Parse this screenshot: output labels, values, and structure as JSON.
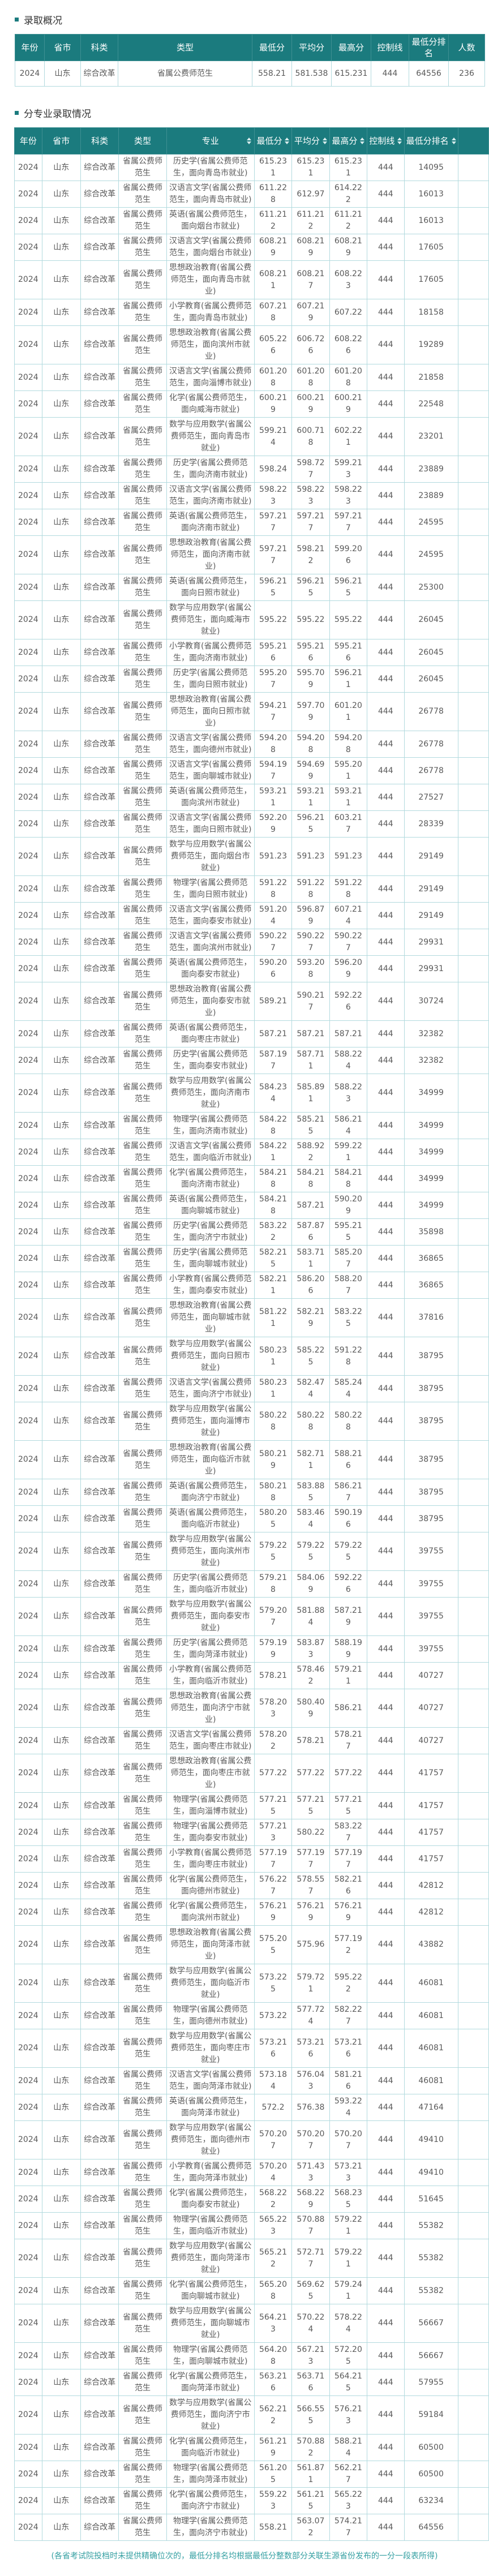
{
  "page": {
    "overview_title": "录取概况",
    "major_title": "分专业录取情况",
    "footnote": "(各省考试院投档时未提供精确位次的，最低分排名均根据最低分整数部分关联生源省份发布的一分一段表所得)"
  },
  "colors": {
    "header_bg": "#1b7b7e",
    "cell_border": "#b2dade",
    "accent_bullet": "#1b7b7e",
    "footnote_text": "#35a0a2"
  },
  "overview_table": {
    "headers": [
      "年份",
      "省市",
      "科类",
      "类型",
      "最低分",
      "平均分",
      "最高分",
      "控制线",
      "最低分排名",
      "人数"
    ],
    "row": [
      "2024",
      "山东",
      "综合改革",
      "省属公费师范生",
      "558.21",
      "581.538",
      "615.231",
      "444",
      "64556",
      "236"
    ]
  },
  "major_table": {
    "headers": [
      {
        "label": "年份",
        "sortable": false
      },
      {
        "label": "省市",
        "sortable": false
      },
      {
        "label": "科类",
        "sortable": false
      },
      {
        "label": "类型",
        "sortable": false
      },
      {
        "label": "专业",
        "sortable": true
      },
      {
        "label": "最低分",
        "sortable": true
      },
      {
        "label": "平均分",
        "sortable": true
      },
      {
        "label": "最高分",
        "sortable": true
      },
      {
        "label": "控制线",
        "sortable": true
      },
      {
        "label": "最低分排名",
        "sortable": true
      },
      {
        "label": "",
        "sortable": false
      }
    ],
    "common": {
      "year": "2024",
      "province": "山东",
      "subject_category": "综合改革",
      "type": "省属公费师范生",
      "control_line": "444"
    },
    "rows": [
      [
        "历史学(省属公费师范生，面向青岛市就业)",
        "615.231",
        "615.231",
        "615.231",
        "14095"
      ],
      [
        "汉语言文学(省属公费师范生，面向青岛市就业)",
        "611.228",
        "612.97",
        "614.222",
        "16013"
      ],
      [
        "英语(省属公费师范生，面向烟台市就业)",
        "611.212",
        "611.212",
        "611.212",
        "16013"
      ],
      [
        "汉语言文学(省属公费师范生，面向烟台市就业)",
        "608.219",
        "608.219",
        "608.219",
        "17605"
      ],
      [
        "思想政治教育(省属公费师范生，面向青岛市就业)",
        "608.211",
        "608.217",
        "608.223",
        "17605"
      ],
      [
        "小学教育(省属公费师范生，面向青岛市就业)",
        "607.218",
        "607.219",
        "607.22",
        "18158"
      ],
      [
        "思想政治教育(省属公费师范生，面向滨州市就业)",
        "605.226",
        "606.726",
        "608.226",
        "19289"
      ],
      [
        "汉语言文学(省属公费师范生，面向淄博市就业)",
        "601.208",
        "601.208",
        "601.208",
        "21858"
      ],
      [
        "化学(省属公费师范生，面向威海市就业)",
        "600.219",
        "600.219",
        "600.219",
        "22548"
      ],
      [
        "数学与应用数学(省属公费师范生，面向青岛市就业)",
        "599.214",
        "600.718",
        "602.221",
        "23201"
      ],
      [
        "历史学(省属公费师范生，面向济南市就业)",
        "598.24",
        "598.727",
        "599.213",
        "23889"
      ],
      [
        "汉语言文学(省属公费师范生，面向济南市就业)",
        "598.223",
        "598.223",
        "598.223",
        "23889"
      ],
      [
        "英语(省属公费师范生，面向济南市就业)",
        "597.217",
        "597.217",
        "597.217",
        "24595"
      ],
      [
        "思想政治教育(省属公费师范生，面向济南市就业)",
        "597.217",
        "598.212",
        "599.206",
        "24595"
      ],
      [
        "英语(省属公费师范生，面向日照市就业)",
        "596.215",
        "596.215",
        "596.215",
        "25300"
      ],
      [
        "数学与应用数学(省属公费师范生，面向威海市就业)",
        "595.22",
        "595.22",
        "595.22",
        "26045"
      ],
      [
        "小学教育(省属公费师范生，面向济南市就业)",
        "595.216",
        "595.216",
        "595.216",
        "26045"
      ],
      [
        "历史学(省属公费师范生，面向日照市就业)",
        "595.207",
        "595.709",
        "596.211",
        "26045"
      ],
      [
        "思想政治教育(省属公费师范生，面向日照市就业)",
        "594.217",
        "597.709",
        "601.201",
        "26778"
      ],
      [
        "汉语言文学(省属公费师范生，面向德州市就业)",
        "594.208",
        "594.208",
        "594.208",
        "26778"
      ],
      [
        "汉语言文学(省属公费师范生，面向聊城市就业)",
        "594.197",
        "594.699",
        "595.201",
        "26778"
      ],
      [
        "英语(省属公费师范生，面向滨州市就业)",
        "593.211",
        "593.211",
        "593.211",
        "27527"
      ],
      [
        "汉语言文学(省属公费师范生，面向日照市就业)",
        "592.209",
        "596.215",
        "603.217",
        "28339"
      ],
      [
        "数学与应用数学(省属公费师范生，面向烟台市就业)",
        "591.23",
        "591.23",
        "591.23",
        "29149"
      ],
      [
        "物理学(省属公费师范生，面向日照市就业)",
        "591.228",
        "591.228",
        "591.228",
        "29149"
      ],
      [
        "汉语言文学(省属公费师范生，面向泰安市就业)",
        "591.204",
        "596.879",
        "607.214",
        "29149"
      ],
      [
        "汉语言文学(省属公费师范生，面向滨州市就业)",
        "590.227",
        "590.227",
        "590.227",
        "29931"
      ],
      [
        "英语(省属公费师范生，面向泰安市就业)",
        "590.206",
        "593.208",
        "596.209",
        "29931"
      ],
      [
        "思想政治教育(省属公费师范生，面向泰安市就业)",
        "589.21",
        "590.217",
        "592.226",
        "30724"
      ],
      [
        "英语(省属公费师范生，面向枣庄市就业)",
        "587.21",
        "587.21",
        "587.21",
        "32382"
      ],
      [
        "历史学(省属公费师范生，面向泰安市就业)",
        "587.197",
        "587.711",
        "588.224",
        "32382"
      ],
      [
        "数学与应用数学(省属公费师范生，面向济南市就业)",
        "584.234",
        "585.891",
        "588.223",
        "34999"
      ],
      [
        "物理学(省属公费师范生，面向济南市就业)",
        "584.228",
        "585.215",
        "586.214",
        "34999"
      ],
      [
        "汉语言文学(省属公费师范生，面向临沂市就业)",
        "584.221",
        "588.922",
        "599.221",
        "34999"
      ],
      [
        "化学(省属公费师范生，面向济南市就业)",
        "584.218",
        "584.218",
        "584.218",
        "34999"
      ],
      [
        "英语(省属公费师范生，面向聊城市就业)",
        "584.218",
        "587.21",
        "590.209",
        "34999"
      ],
      [
        "历史学(省属公费师范生，面向济宁市就业)",
        "583.222",
        "587.876",
        "595.215",
        "35898"
      ],
      [
        "历史学(省属公费师范生，面向聊城市就业)",
        "582.215",
        "583.711",
        "585.207",
        "36865"
      ],
      [
        "小学教育(省属公费师范生，面向泰安市就业)",
        "582.211",
        "586.206",
        "588.207",
        "36865"
      ],
      [
        "思想政治教育(省属公费师范生，面向聊城市就业)",
        "581.221",
        "582.219",
        "583.225",
        "37816"
      ],
      [
        "数学与应用数学(省属公费师范生，面向日照市就业)",
        "580.231",
        "585.225",
        "591.228",
        "38795"
      ],
      [
        "汉语言文学(省属公费师范生，面向济宁市就业)",
        "580.231",
        "582.474",
        "585.244",
        "38795"
      ],
      [
        "数学与应用数学(省属公费师范生，面向淄博市就业)",
        "580.228",
        "580.228",
        "580.228",
        "38795"
      ],
      [
        "思想政治教育(省属公费师范生，面向临沂市就业)",
        "580.219",
        "582.711",
        "588.216",
        "38795"
      ],
      [
        "英语(省属公费师范生，面向济宁市就业)",
        "580.218",
        "583.885",
        "586.217",
        "38795"
      ],
      [
        "英语(省属公费师范生，面向临沂市就业)",
        "580.205",
        "583.464",
        "590.196",
        "38795"
      ],
      [
        "数学与应用数学(省属公费师范生，面向滨州市就业)",
        "579.225",
        "579.225",
        "579.225",
        "39755"
      ],
      [
        "历史学(省属公费师范生，面向临沂市就业)",
        "579.218",
        "584.069",
        "592.226",
        "39755"
      ],
      [
        "数学与应用数学(省属公费师范生，面向泰安市就业)",
        "579.207",
        "581.884",
        "587.219",
        "39755"
      ],
      [
        "历史学(省属公费师范生，面向菏泽市就业)",
        "579.199",
        "583.873",
        "588.199",
        "39755"
      ],
      [
        "小学教育(省属公费师范生，面向临沂市就业)",
        "578.21",
        "578.462",
        "579.211",
        "40727"
      ],
      [
        "思想政治教育(省属公费师范生，面向济宁市就业)",
        "578.203",
        "580.409",
        "586.21",
        "40727"
      ],
      [
        "汉语言文学(省属公费师范生，面向枣庄市就业)",
        "578.202",
        "578.21",
        "578.217",
        "40727"
      ],
      [
        "思想政治教育(省属公费师范生，面向枣庄市就业)",
        "577.22",
        "577.22",
        "577.22",
        "41757"
      ],
      [
        "物理学(省属公费师范生，面向淄博市就业)",
        "577.215",
        "577.215",
        "577.215",
        "41757"
      ],
      [
        "物理学(省属公费师范生，面向泰安市就业)",
        "577.213",
        "580.22",
        "583.227",
        "41757"
      ],
      [
        "小学教育(省属公费师范生，面向枣庄市就业)",
        "577.197",
        "577.197",
        "577.197",
        "41757"
      ],
      [
        "化学(省属公费师范生，面向德州市就业)",
        "576.227",
        "578.557",
        "582.216",
        "42812"
      ],
      [
        "化学(省属公费师范生，面向滨州市就业)",
        "576.219",
        "576.219",
        "576.219",
        "42812"
      ],
      [
        "思想政治教育(省属公费师范生，面向菏泽市就业)",
        "575.205",
        "575.96",
        "577.192",
        "43882"
      ],
      [
        "数学与应用数学(省属公费师范生，面向临沂市就业)",
        "573.225",
        "579.721",
        "595.222",
        "46081"
      ],
      [
        "物理学(省属公费师范生，面向德州市就业)",
        "573.22",
        "577.724",
        "582.227",
        "46081"
      ],
      [
        "数学与应用数学(省属公费师范生，面向枣庄市就业)",
        "573.216",
        "573.216",
        "573.216",
        "46081"
      ],
      [
        "汉语言文学(省属公费师范生，面向菏泽市就业)",
        "573.184",
        "576.043",
        "581.216",
        "46081"
      ],
      [
        "英语(省属公费师范生，面向菏泽市就业)",
        "572.2",
        "576.38",
        "593.224",
        "47164"
      ],
      [
        "数学与应用数学(省属公费师范生，面向德州市就业)",
        "570.207",
        "570.207",
        "570.207",
        "49410"
      ],
      [
        "小学教育(省属公费师范生，面向菏泽市就业)",
        "570.204",
        "571.433",
        "573.213",
        "49410"
      ],
      [
        "化学(省属公费师范生，面向泰安市就业)",
        "568.222",
        "568.229",
        "568.235",
        "51645"
      ],
      [
        "物理学(省属公费师范生，面向临沂市就业)",
        "565.223",
        "570.887",
        "579.221",
        "55382"
      ],
      [
        "数学与应用数学(省属公费师范生，面向菏泽市就业)",
        "565.212",
        "572.717",
        "579.221",
        "55382"
      ],
      [
        "化学(省属公费师范生，面向聊城市就业)",
        "565.208",
        "569.625",
        "579.241",
        "55382"
      ],
      [
        "数学与应用数学(省属公费师范生，面向聊城市就业)",
        "564.213",
        "570.224",
        "578.224",
        "56667"
      ],
      [
        "物理学(省属公费师范生，面向聊城市就业)",
        "564.208",
        "567.213",
        "572.205",
        "56667"
      ],
      [
        "化学(省属公费师范生，面向菏泽市就业)",
        "563.216",
        "563.716",
        "564.215",
        "57955"
      ],
      [
        "数学与应用数学(省属公费师范生，面向济宁市就业)",
        "562.212",
        "566.555",
        "576.213",
        "59184"
      ],
      [
        "化学(省属公费师范生，面向临沂市就业)",
        "561.219",
        "570.882",
        "588.214",
        "60500"
      ],
      [
        "物理学(省属公费师范生，面向菏泽市就业)",
        "561.205",
        "561.871",
        "562.217",
        "60500"
      ],
      [
        "化学(省属公费师范生，面向济宁市就业)",
        "559.223",
        "561.215",
        "565.223",
        "63234"
      ],
      [
        "物理学(省属公费师范生，面向济宁市就业)",
        "558.21",
        "563.072",
        "574.217",
        "64556"
      ]
    ]
  }
}
